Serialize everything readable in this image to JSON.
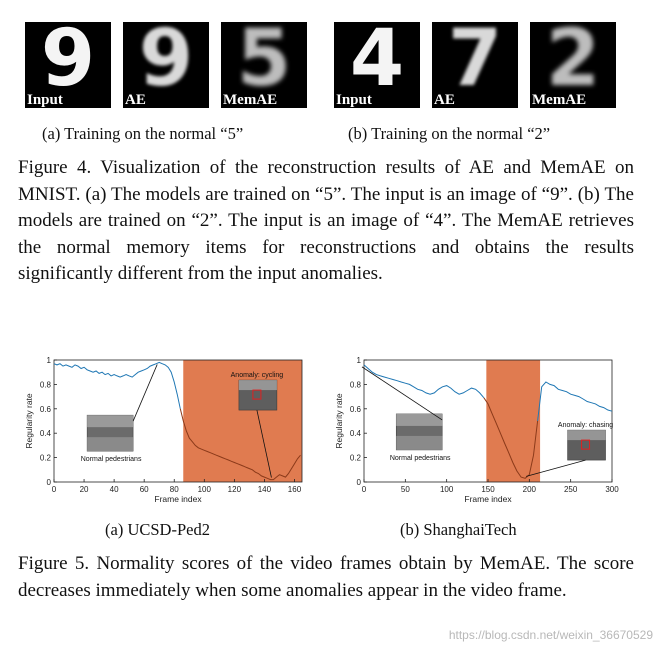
{
  "figure4": {
    "panel_a": {
      "tiles": [
        {
          "label": "Input",
          "digit": "9"
        },
        {
          "label": "AE",
          "digit": "9"
        },
        {
          "label": "MemAE",
          "digit": "5"
        }
      ],
      "subcaption": "(a)  Training on the normal “5”"
    },
    "panel_b": {
      "tiles": [
        {
          "label": "Input",
          "digit": "4"
        },
        {
          "label": "AE",
          "digit": "7"
        },
        {
          "label": "MemAE",
          "digit": "2"
        }
      ],
      "subcaption": "(b)  Training on the normal “2”"
    },
    "caption": "Figure 4. Visualization of the reconstruction results of AE and MemAE on MNIST. (a) The models are trained on “5”. The input is an image of “9”. (b) The models are trained on “2”. The input is an image of “4”. The MemAE retrieves the normal memory items for reconstructions and obtains the results significantly different from the input anomalies."
  },
  "figure5": {
    "caption": "Figure 5. Normality scores of the video frames obtain by MemAE. The score decreases immediately when some anomalies appear in the video frame.",
    "chart_data": [
      {
        "type": "line",
        "subcaption": "(a)  UCSD-Ped2",
        "xlabel": "Frame index",
        "ylabel": "Regularity rate",
        "xlim": [
          0,
          165
        ],
        "ylim": [
          0,
          1
        ],
        "xticks": [
          0,
          20,
          40,
          60,
          80,
          100,
          120,
          140,
          160
        ],
        "yticks": [
          0,
          0.2,
          0.4,
          0.6,
          0.8,
          1
        ],
        "anomaly_span": [
          86,
          165
        ],
        "color_normal": "#1f77b4",
        "color_anomaly": "#8b3a1a",
        "color_span": "#e07b50",
        "x": [
          0,
          2,
          4,
          6,
          8,
          10,
          12,
          14,
          16,
          18,
          20,
          22,
          24,
          26,
          28,
          30,
          32,
          34,
          36,
          38,
          40,
          42,
          44,
          46,
          48,
          50,
          52,
          54,
          56,
          58,
          60,
          62,
          64,
          66,
          68,
          70,
          72,
          74,
          76,
          78,
          80,
          82,
          84,
          86,
          88,
          90,
          92,
          94,
          96,
          98,
          100,
          102,
          104,
          106,
          108,
          110,
          112,
          114,
          116,
          118,
          120,
          122,
          124,
          126,
          128,
          130,
          132,
          134,
          136,
          138,
          140,
          142,
          144,
          146,
          148,
          150,
          152,
          154,
          156,
          158,
          160,
          162,
          164
        ],
        "y": [
          0.97,
          0.96,
          0.97,
          0.95,
          0.96,
          0.95,
          0.94,
          0.96,
          0.95,
          0.93,
          0.94,
          0.92,
          0.91,
          0.9,
          0.91,
          0.89,
          0.9,
          0.88,
          0.89,
          0.87,
          0.88,
          0.87,
          0.86,
          0.87,
          0.88,
          0.87,
          0.86,
          0.88,
          0.9,
          0.91,
          0.92,
          0.93,
          0.95,
          0.96,
          0.97,
          0.98,
          0.97,
          0.96,
          0.94,
          0.9,
          0.82,
          0.72,
          0.6,
          0.5,
          0.42,
          0.36,
          0.33,
          0.3,
          0.28,
          0.27,
          0.26,
          0.25,
          0.24,
          0.23,
          0.22,
          0.21,
          0.2,
          0.19,
          0.18,
          0.17,
          0.16,
          0.15,
          0.14,
          0.13,
          0.12,
          0.11,
          0.1,
          0.08,
          0.07,
          0.05,
          0.04,
          0.03,
          0.02,
          0.02,
          0.04,
          0.06,
          0.05,
          0.04,
          0.07,
          0.11,
          0.15,
          0.19,
          0.22
        ],
        "annotations": [
          {
            "text": "Normal pedestrians",
            "x": 38,
            "y": 0.22
          },
          {
            "text": "Anomaly: cycling",
            "x": 135,
            "y": 0.86
          }
        ]
      },
      {
        "type": "line",
        "subcaption": "(b)  ShanghaiTech",
        "xlabel": "Frame index",
        "ylabel": "Regularity rate",
        "xlim": [
          0,
          300
        ],
        "ylim": [
          0,
          1
        ],
        "xticks": [
          0,
          50,
          100,
          150,
          200,
          250,
          300
        ],
        "yticks": [
          0,
          0.2,
          0.4,
          0.6,
          0.8,
          1
        ],
        "anomaly_span": [
          148,
          213
        ],
        "color_normal": "#1f77b4",
        "color_anomaly": "#8b3a1a",
        "color_span": "#e07b50",
        "x": [
          0,
          5,
          10,
          15,
          20,
          25,
          30,
          35,
          40,
          45,
          50,
          55,
          60,
          65,
          70,
          75,
          80,
          85,
          90,
          95,
          100,
          105,
          110,
          115,
          120,
          125,
          130,
          135,
          140,
          145,
          150,
          155,
          160,
          165,
          170,
          175,
          180,
          185,
          190,
          195,
          200,
          205,
          210,
          215,
          220,
          225,
          230,
          235,
          240,
          245,
          250,
          255,
          260,
          265,
          270,
          275,
          280,
          285,
          290,
          295,
          300
        ],
        "y": [
          0.96,
          0.93,
          0.9,
          0.88,
          0.87,
          0.86,
          0.85,
          0.84,
          0.83,
          0.82,
          0.81,
          0.8,
          0.78,
          0.76,
          0.75,
          0.73,
          0.72,
          0.73,
          0.76,
          0.78,
          0.79,
          0.77,
          0.74,
          0.72,
          0.73,
          0.75,
          0.77,
          0.76,
          0.73,
          0.69,
          0.64,
          0.56,
          0.48,
          0.4,
          0.32,
          0.24,
          0.16,
          0.09,
          0.04,
          0.03,
          0.06,
          0.22,
          0.5,
          0.78,
          0.82,
          0.8,
          0.79,
          0.76,
          0.75,
          0.74,
          0.72,
          0.71,
          0.7,
          0.68,
          0.66,
          0.65,
          0.64,
          0.62,
          0.61,
          0.59,
          0.58
        ],
        "annotations": [
          {
            "text": "Normal pedestrians",
            "x": 68,
            "y": 0.23
          },
          {
            "text": "Anomaly: chasing",
            "x": 268,
            "y": 0.45
          }
        ]
      }
    ]
  },
  "watermark": "https://blog.csdn.net/weixin_36670529"
}
